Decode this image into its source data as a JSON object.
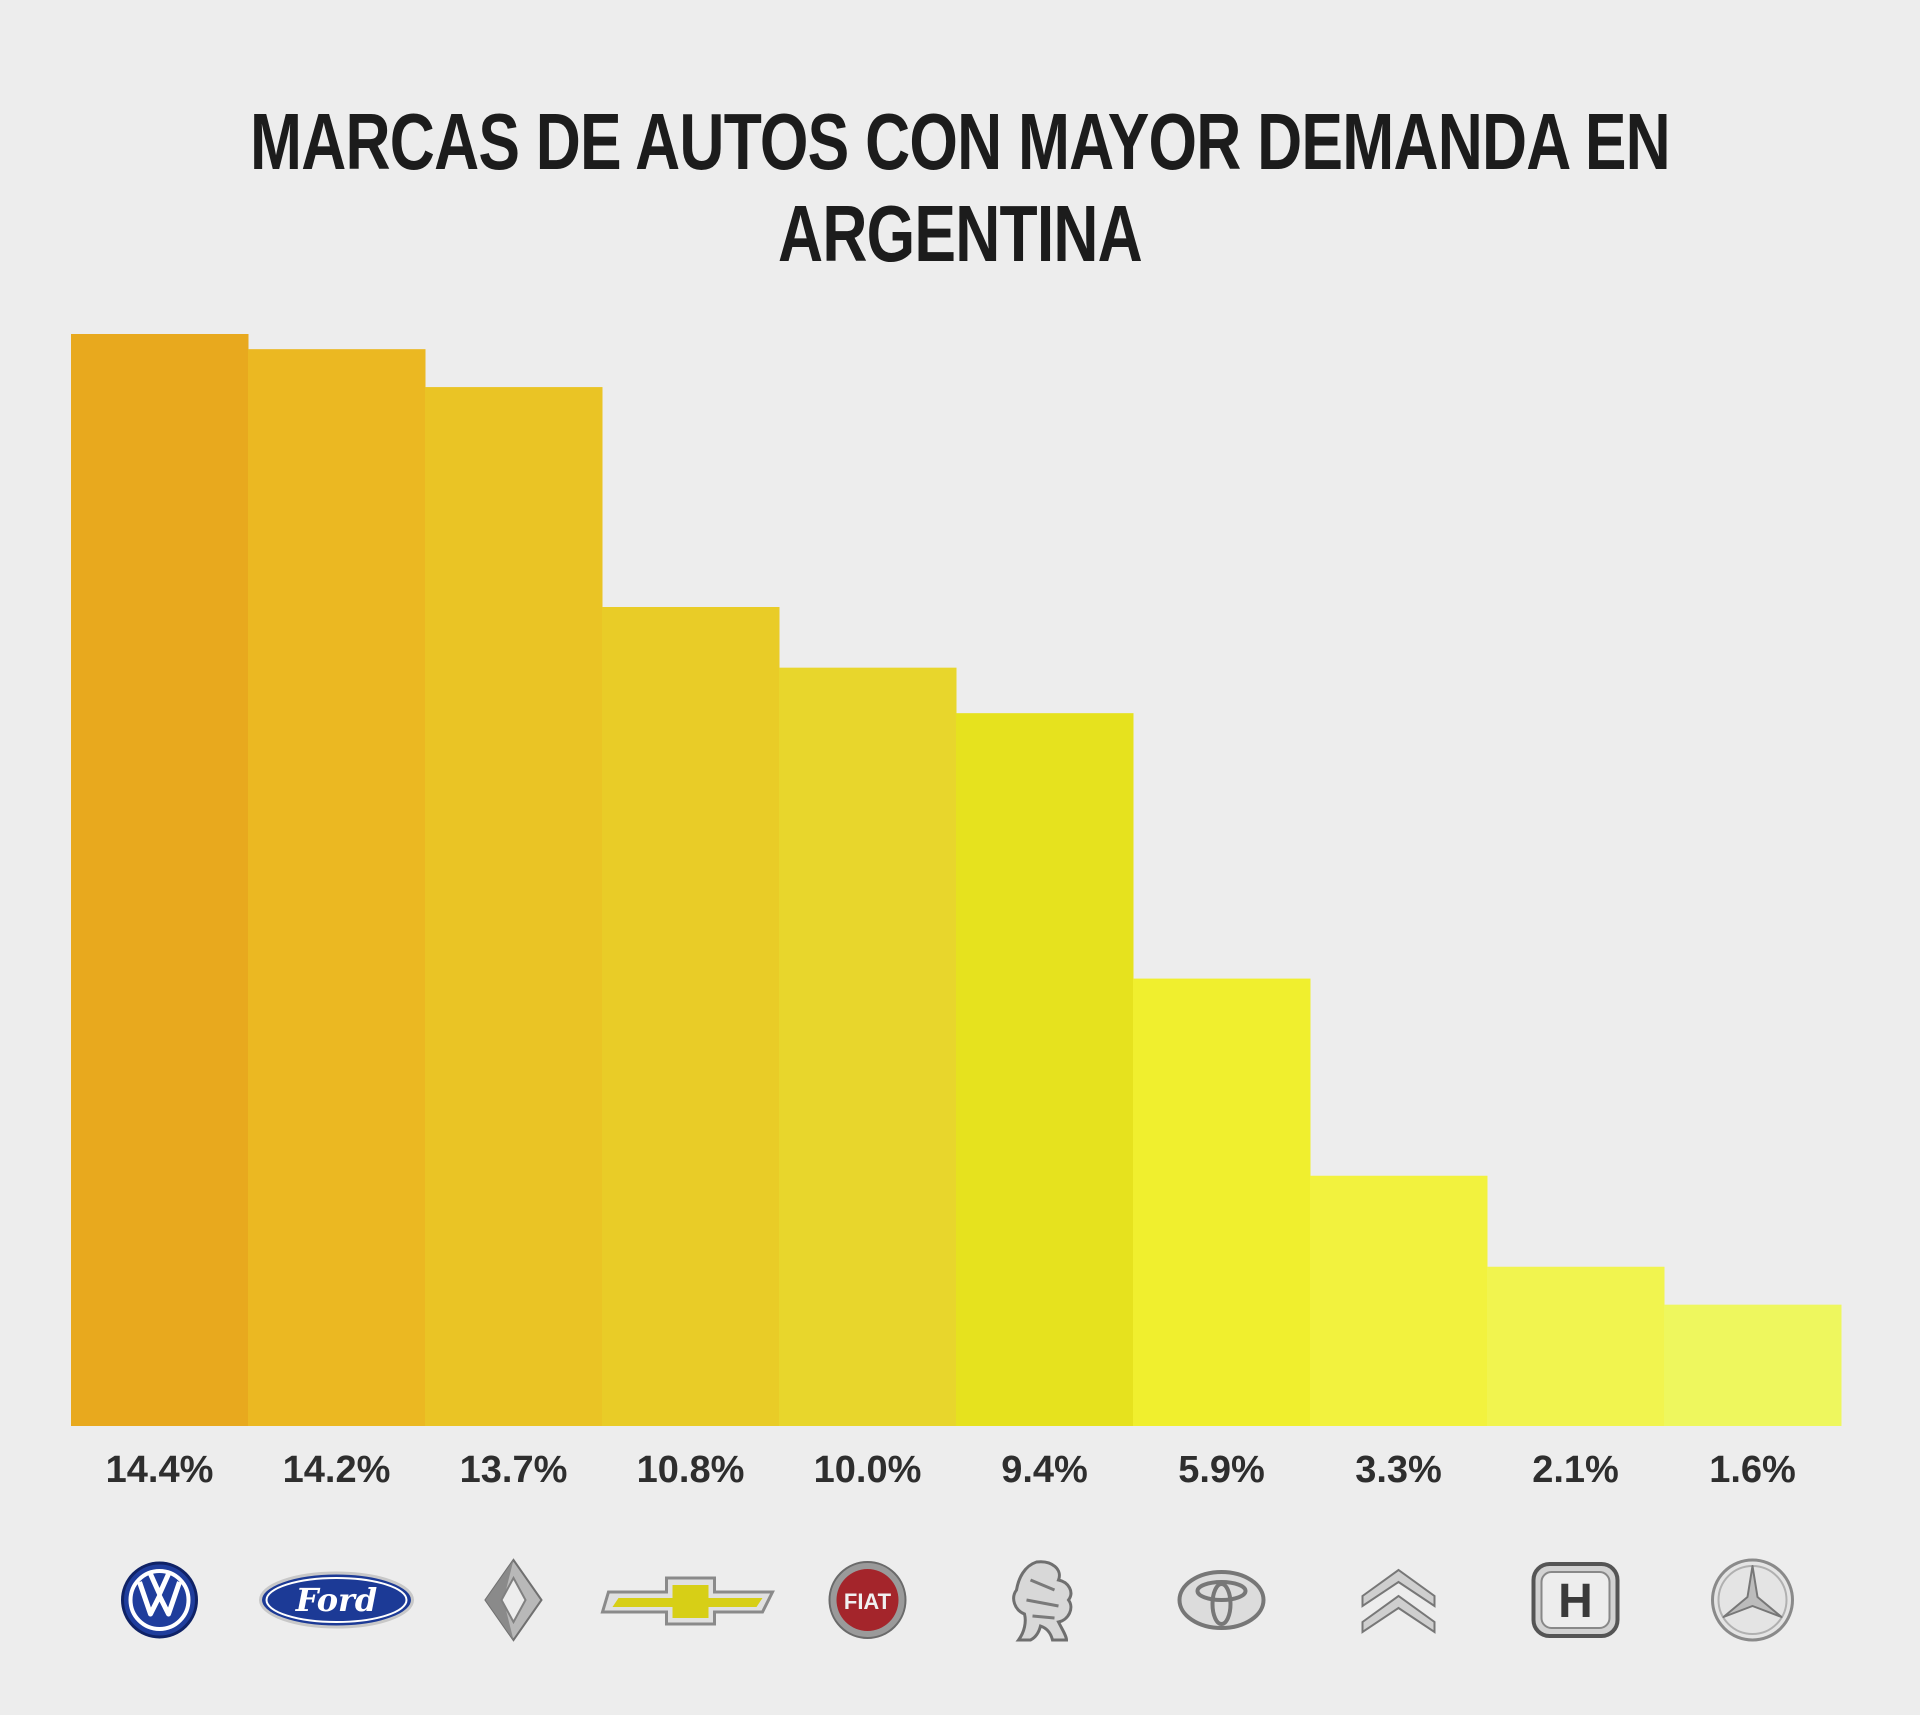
{
  "chart_data": {
    "type": "bar",
    "title": "MARCAS DE AUTOS CON MAYOR DEMANDA EN ARGENTINA",
    "categories": [
      "Volkswagen",
      "Ford",
      "Renault",
      "Chevrolet",
      "Fiat",
      "Peugeot",
      "Toyota",
      "Citroën",
      "Honda",
      "Mercedes-Benz"
    ],
    "values": [
      14.4,
      14.2,
      13.7,
      10.8,
      10.0,
      9.4,
      5.9,
      3.3,
      2.1,
      1.6
    ],
    "value_labels": [
      "14.4%",
      "14.2%",
      "13.7%",
      "10.8%",
      "10.0%",
      "9.4%",
      "5.9%",
      "3.3%",
      "2.1%",
      "1.6%"
    ],
    "logo_lettering": [
      "VW",
      "Ford",
      "",
      "",
      "FIAT",
      "",
      "",
      "",
      "H",
      ""
    ],
    "colors": [
      "#e8a91e",
      "#ebb822",
      "#eac425",
      "#e9cc27",
      "#e8d62c",
      "#e6e21e",
      "#f0ef2e",
      "#f2f23e",
      "#f1f44f",
      "#eef75e"
    ],
    "ylim": [
      0,
      14.4
    ],
    "grid": false,
    "legend": "none",
    "xlabel": "",
    "ylabel": ""
  }
}
